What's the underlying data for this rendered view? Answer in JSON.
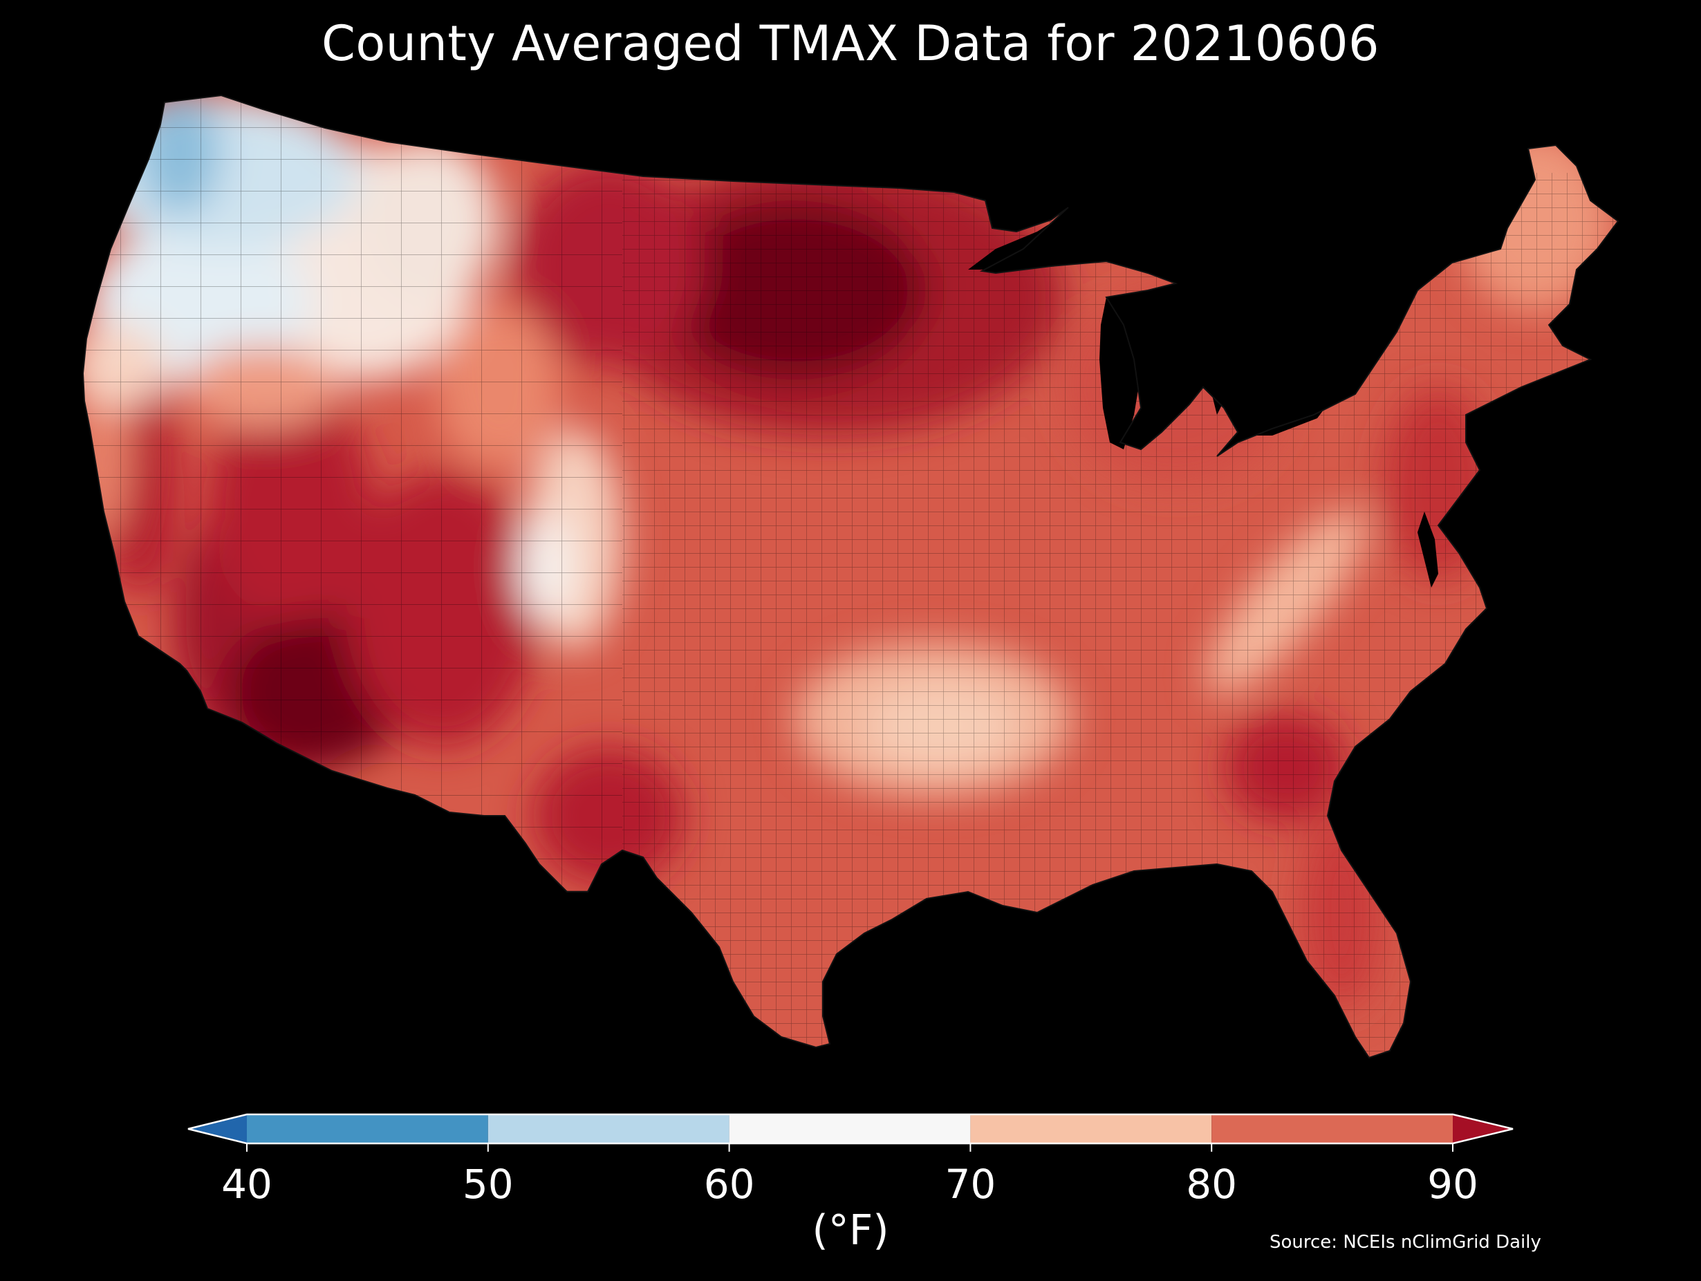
{
  "title": "County Averaged TMAX Data for 20210606",
  "unit_label": "(°F)",
  "source": "Source: NCEIs nClimGrid Daily",
  "colors": {
    "background": "#000000",
    "below_40": "#2166ac",
    "bin_40_50": "#4393c3",
    "bin_50_60": "#b7d7ea",
    "bin_60_70": "#f7f7f7",
    "bin_70_80": "#f7c2a6",
    "bin_80_90": "#dc6955",
    "above_90": "#a50f25",
    "dark_hot": "#6d0019",
    "hot": "#b41e2e",
    "warm": "#cf4a3f"
  },
  "colorbar": {
    "ticks": [
      "40",
      "50",
      "60",
      "70",
      "80",
      "90"
    ],
    "bins": [
      {
        "from": 40,
        "to": 50,
        "color": "#4393c3"
      },
      {
        "from": 50,
        "to": 60,
        "color": "#b7d7ea"
      },
      {
        "from": 60,
        "to": 70,
        "color": "#f7f7f7"
      },
      {
        "from": 70,
        "to": 80,
        "color": "#f7c2a6"
      },
      {
        "from": 80,
        "to": 90,
        "color": "#dc6955"
      }
    ],
    "extend_low_color": "#2166ac",
    "extend_high_color": "#a50f25"
  }
}
